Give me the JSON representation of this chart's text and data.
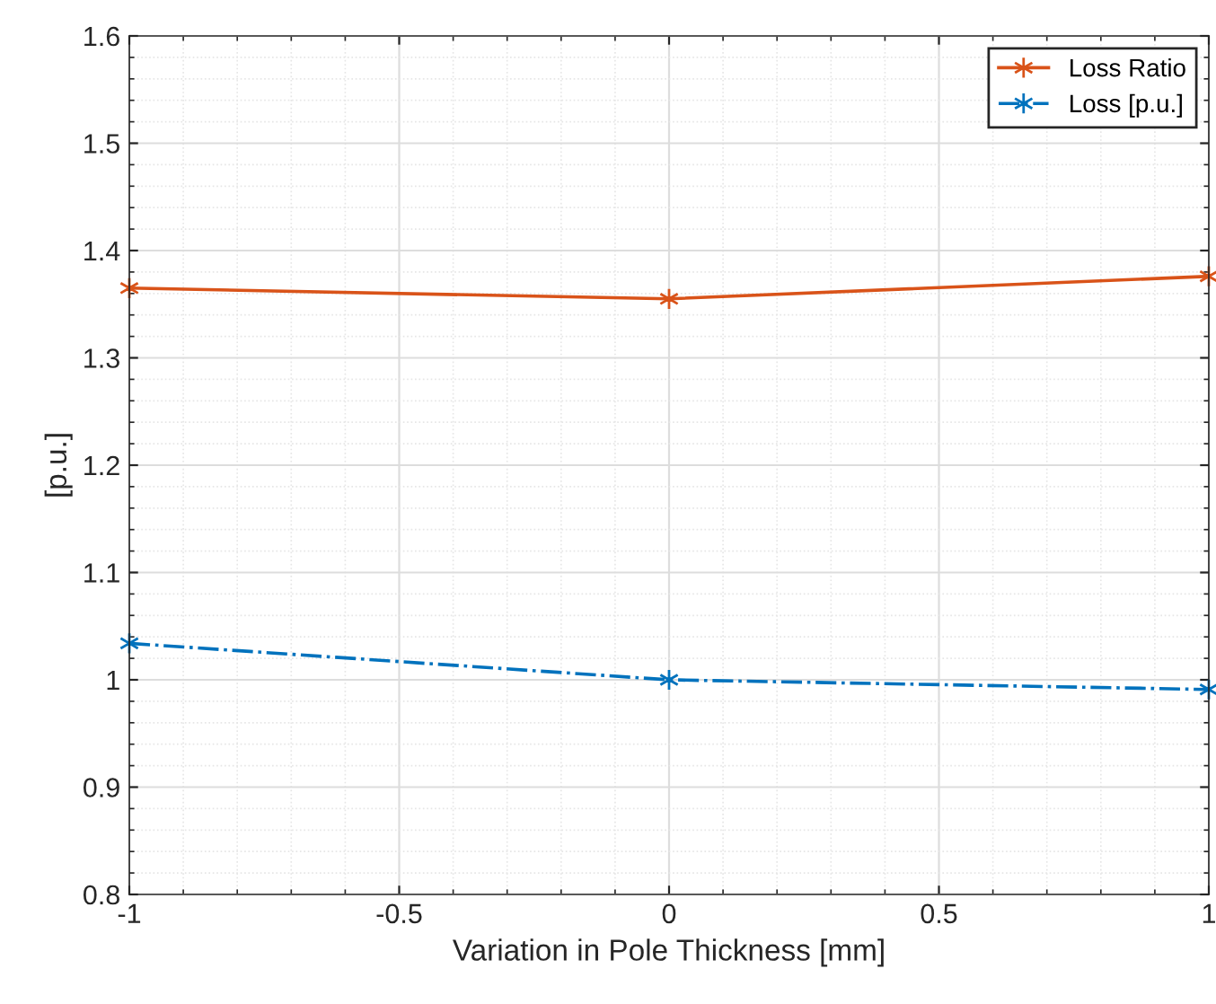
{
  "chart_data": {
    "type": "line",
    "xlabel": "Variation in Pole Thickness [mm]",
    "ylabel": "[p.u.]",
    "x": [
      -1,
      0,
      1
    ],
    "series": [
      {
        "name": "Loss Ratio",
        "color": "#d95319",
        "values": [
          1.365,
          1.355,
          1.376
        ],
        "line_style": "solid"
      },
      {
        "name": "Loss [p.u.]",
        "color": "#0072bd",
        "values": [
          1.034,
          1.0,
          0.991
        ],
        "line_style": "dashdot"
      }
    ],
    "xlim": [
      -1,
      1
    ],
    "xticks": [
      -1,
      -0.5,
      0,
      0.5,
      1
    ],
    "ylim": [
      0.8,
      1.6
    ],
    "yticks": [
      0.8,
      0.9,
      1,
      1.1,
      1.2,
      1.3,
      1.4,
      1.5,
      1.6
    ],
    "grid": true,
    "legend": "top right",
    "marker": "cross"
  }
}
